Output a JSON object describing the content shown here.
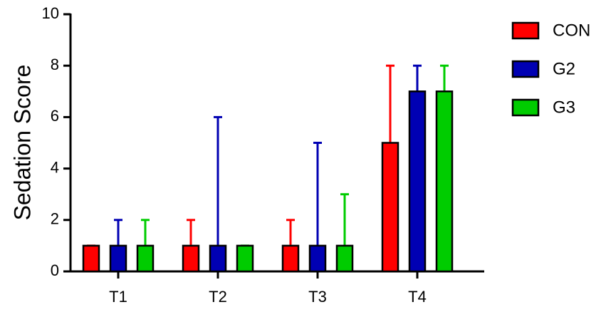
{
  "chart_data": {
    "type": "bar",
    "title": "",
    "xlabel": "",
    "ylabel": "Sedation Score",
    "ylim": [
      0,
      10
    ],
    "yticks": [
      0,
      2,
      4,
      6,
      8,
      10
    ],
    "categories": [
      "T1",
      "T2",
      "T3",
      "T4"
    ],
    "series": [
      {
        "name": "CON",
        "color": "#ff0000",
        "values": [
          1,
          1,
          1,
          5
        ],
        "error_upper": [
          1,
          2,
          2,
          8
        ]
      },
      {
        "name": "G2",
        "color": "#0000b3",
        "values": [
          1,
          1,
          1,
          7
        ],
        "error_upper": [
          2,
          6,
          5,
          8
        ]
      },
      {
        "name": "G3",
        "color": "#00cc00",
        "values": [
          1,
          1,
          1,
          7
        ],
        "error_upper": [
          2,
          1,
          3,
          8
        ]
      }
    ],
    "grid": false,
    "legend_position": "top-right"
  }
}
